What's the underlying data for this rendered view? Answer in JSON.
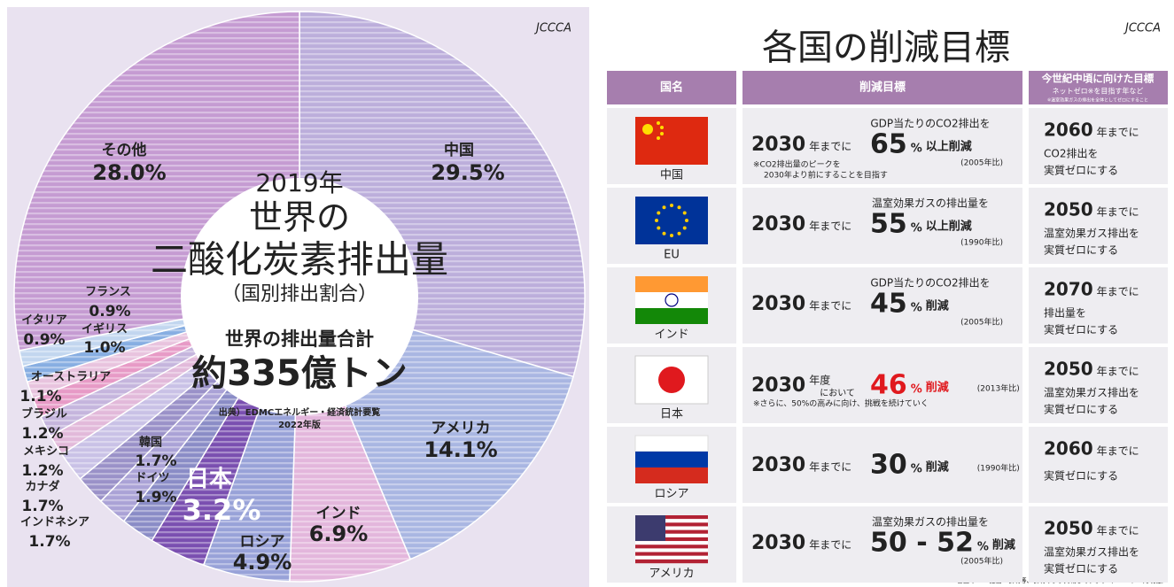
{
  "chart_data": {
    "type": "donut",
    "year": "2019年",
    "title_lines": [
      "世界の",
      "二酸化炭素排出量"
    ],
    "subtitle": "（国別排出割合）",
    "total_label": "世界の排出量合計",
    "total": "約335億トン",
    "source": "出典）EDMCエネルギー・経済統計要覧",
    "source_edition": "2022年版",
    "categories": [
      "中国",
      "アメリカ",
      "インド",
      "ロシア",
      "日本",
      "ドイツ",
      "韓国",
      "インドネシア",
      "カナダ",
      "メキシコ",
      "ブラジル",
      "オーストラリア",
      "イギリス",
      "イタリア",
      "フランス",
      "その他"
    ],
    "values": [
      29.5,
      14.1,
      6.9,
      4.9,
      3.2,
      1.9,
      1.7,
      1.7,
      1.7,
      1.2,
      1.2,
      1.1,
      1.0,
      0.9,
      0.9,
      28.0
    ],
    "value_labels": [
      "29.5%",
      "14.1%",
      "6.9%",
      "4.9%",
      "3.2%",
      "1.9%",
      "1.7%",
      "1.7%",
      "1.7%",
      "1.2%",
      "1.2%",
      "1.1%",
      "1.0%",
      "0.9%",
      "0.9%",
      "28.0%"
    ],
    "colors": [
      "#bcaedb",
      "#a9b6e2",
      "#e3b6dc",
      "#98a2d8",
      "#7a4fb0",
      "#8a8cc6",
      "#aaa2d6",
      "#9a91c8",
      "#c9c1e6",
      "#e2b9da",
      "#c5b5dd",
      "#e79ac6",
      "#e8c3de",
      "#87aee2",
      "#c2d6ef",
      "#c59bd2"
    ]
  },
  "logo": "JCCCA",
  "table": {
    "title": "各国の削減目標",
    "headers": [
      "国名",
      "削減目標",
      "今世紀中頃に向けた目標"
    ],
    "header_notes": [
      "ネットゼロ※を目指す年など",
      "※温室効果ガスの排出を全体としてゼロにすること"
    ],
    "rows": [
      {
        "country": "中国",
        "year": "2030",
        "suffix": "年までに",
        "lead": "GDP当たりのCO2排出を",
        "amount": "65",
        "unit": "%",
        "action": "以上削減",
        "base": "(2005年比)",
        "note": [
          "※CO2排出量のピークを",
          "2030年より前にすることを目指す"
        ],
        "goal_year": "2060",
        "goal_suffix": "年までに",
        "goal_lines": [
          "CO2排出を",
          "実質ゼロにする"
        ]
      },
      {
        "country": "EU",
        "year": "2030",
        "suffix": "年までに",
        "lead": "温室効果ガスの排出量を",
        "amount": "55",
        "unit": "%",
        "action": "以上削減",
        "base": "(1990年比)",
        "goal_year": "2050",
        "goal_suffix": "年までに",
        "goal_lines": [
          "温室効果ガス排出を",
          "実質ゼロにする"
        ]
      },
      {
        "country": "インド",
        "year": "2030",
        "suffix": "年までに",
        "lead": "GDP当たりのCO2排出を",
        "amount": "45",
        "unit": "%",
        "action": "削減",
        "base": "(2005年比)",
        "goal_year": "2070",
        "goal_suffix": "年までに",
        "goal_lines": [
          "排出量を",
          "実質ゼロにする"
        ]
      },
      {
        "country": "日本",
        "year": "2030",
        "suffix": "年度",
        "suffix2": "において",
        "amount": "46",
        "unit": "%",
        "action": "削減",
        "base": "(2013年比)",
        "amount_color": "#e0191e",
        "note": [
          "※さらに、50%の高みに向け、挑戦を続けていく"
        ],
        "goal_year": "2050",
        "goal_suffix": "年までに",
        "goal_lines": [
          "温室効果ガス排出を",
          "実質ゼロにする"
        ]
      },
      {
        "country": "ロシア",
        "year": "2030",
        "suffix": "年までに",
        "amount": "30",
        "unit": "%",
        "action": "削減",
        "base": "(1990年比)",
        "goal_year": "2060",
        "goal_suffix": "年までに",
        "goal_lines": [
          "実質ゼロにする"
        ]
      },
      {
        "country": "アメリカ",
        "year": "2030",
        "suffix": "年までに",
        "lead": "温室効果ガスの排出量を",
        "amount": "50 - 52",
        "unit": "%",
        "action": "削減",
        "base": "(2005年比)",
        "goal_year": "2050",
        "goal_suffix": "年までに",
        "goal_lines": [
          "温室効果ガス排出を",
          "実質ゼロにする"
        ]
      }
    ],
    "footnote": "各国のNDC提出・表明等、表明のまま掲載しています（2022年10月現在）"
  }
}
